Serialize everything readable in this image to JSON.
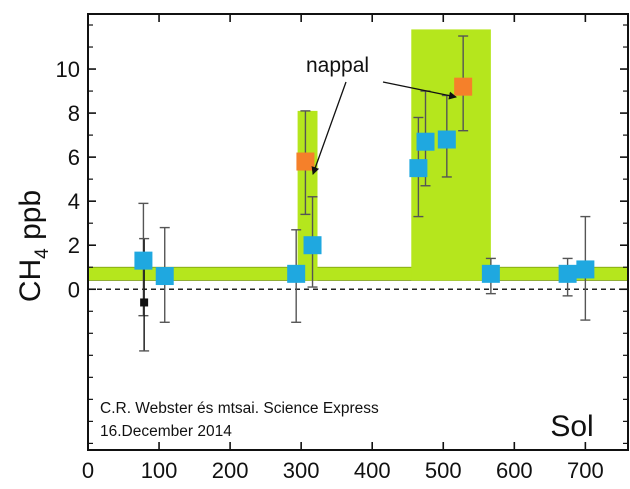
{
  "chart_data": {
    "type": "scatter",
    "ylabel_main": "CH",
    "ylabel_sub": "4",
    "ylabel_unit": " ppb",
    "xlabel": "Sol",
    "xlim": [
      0,
      760
    ],
    "ylim": [
      -7.3,
      12.5
    ],
    "x_ticks": [
      0,
      100,
      200,
      300,
      400,
      500,
      600,
      700
    ],
    "y_ticks": [
      0,
      2,
      4,
      6,
      8,
      10
    ],
    "background_band": {
      "y0": 0.4,
      "y1": 1.0,
      "color": "#b5e61d"
    },
    "highlight_regions": [
      {
        "x0": 295,
        "x1": 323,
        "y0": 0.4,
        "y1": 8.1,
        "color": "#b5e61d"
      },
      {
        "x0": 455,
        "x1": 567,
        "y0": 0.4,
        "y1": 11.8,
        "color": "#b5e61d"
      }
    ],
    "series": [
      {
        "marker": "square-blue",
        "color": "#1fa8e0",
        "points": [
          {
            "x": 78,
            "y": 1.3,
            "lo": -1.2,
            "hi": 3.9
          },
          {
            "x": 108,
            "y": 0.6,
            "lo": -1.5,
            "hi": 2.8
          },
          {
            "x": 293,
            "y": 0.7,
            "lo": -1.5,
            "hi": 2.7
          },
          {
            "x": 316,
            "y": 2.0,
            "lo": 0.1,
            "hi": 4.2
          },
          {
            "x": 465,
            "y": 5.5,
            "lo": 3.3,
            "hi": 7.8
          },
          {
            "x": 475,
            "y": 6.7,
            "lo": 4.7,
            "hi": 9.0
          },
          {
            "x": 505,
            "y": 6.8,
            "lo": 5.1,
            "hi": 8.8
          },
          {
            "x": 567,
            "y": 0.7,
            "lo": -0.2,
            "hi": 1.4
          },
          {
            "x": 675,
            "y": 0.7,
            "lo": -0.3,
            "hi": 1.4
          },
          {
            "x": 700,
            "y": 0.9,
            "lo": -1.4,
            "hi": 3.3
          }
        ]
      },
      {
        "marker": "square-orange",
        "color": "#f5802a",
        "points": [
          {
            "x": 306,
            "y": 5.8,
            "lo": 3.4,
            "hi": 8.1
          },
          {
            "x": 528,
            "y": 9.2,
            "lo": 7.2,
            "hi": 11.5
          }
        ]
      },
      {
        "marker": "square-black",
        "color": "#111111",
        "points": [
          {
            "x": 79,
            "y": -0.6,
            "lo": -2.8,
            "hi": 2.3
          }
        ]
      }
    ],
    "annotations": {
      "label": "nappal",
      "credit_line1": "C.R. Webster és mtsai. Science Express",
      "credit_line2": "16.December 2014"
    }
  }
}
